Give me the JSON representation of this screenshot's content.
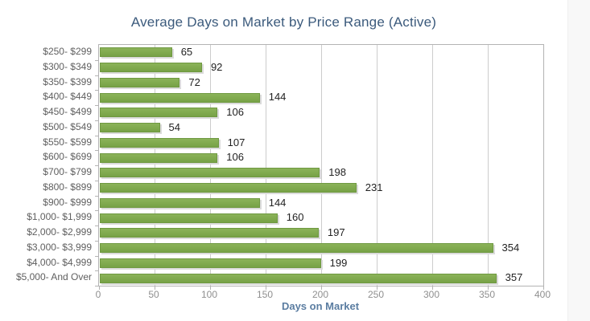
{
  "page": {
    "card_background": "#ffffff",
    "gutter_background": "#f8f8f8"
  },
  "chart_data": {
    "type": "bar",
    "orientation": "horizontal",
    "title": "Average Days on Market by Price Range (Active)",
    "xlabel": "Days on Market",
    "ylabel": "",
    "categories": [
      "$250- $299",
      "$300- $349",
      "$350- $399",
      "$400- $449",
      "$450- $499",
      "$500- $549",
      "$550- $599",
      "$600- $699",
      "$700- $799",
      "$800- $899",
      "$900- $999",
      "$1,000- $1,999",
      "$2,000- $2,999",
      "$3,000- $3,999",
      "$4,000- $4,999",
      "$5,000- And Over"
    ],
    "values": [
      65,
      92,
      72,
      144,
      106,
      54,
      107,
      106,
      198,
      231,
      144,
      160,
      197,
      354,
      199,
      357
    ],
    "xlim": [
      0,
      400
    ],
    "xticks": [
      0,
      50,
      100,
      150,
      200,
      250,
      300,
      350,
      400
    ],
    "grid": "vertical",
    "legend": "none",
    "colors": {
      "bar_fill": "#80aa4e",
      "bar_border": "#6f9941",
      "bar_shadow": "#dbdbdb",
      "title_text": "#3b5a7c",
      "axis_title_text": "#5b7da1",
      "tick_text": "#8f8f8f",
      "category_text": "#5f5f5f",
      "value_text": "#222222",
      "gridline": "#cccccc",
      "plot_border": "#b3b3b3"
    }
  }
}
